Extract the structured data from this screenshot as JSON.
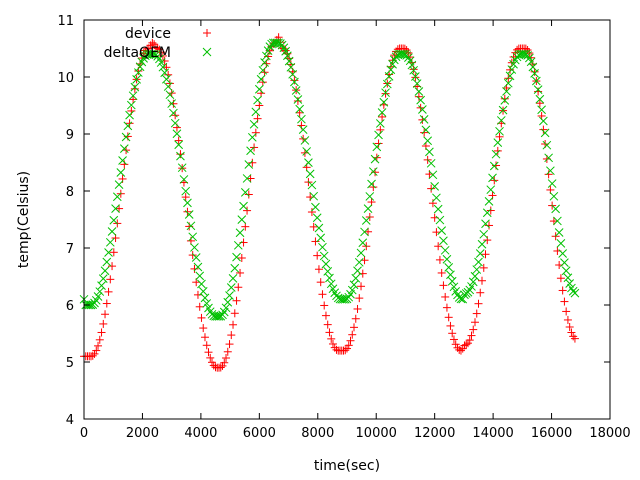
{
  "chart_data": {
    "type": "scatter",
    "title": "",
    "xlabel": "time(sec)",
    "ylabel": "temp(Celsius)",
    "xlim": [
      0,
      18000
    ],
    "ylim": [
      4,
      11
    ],
    "x_ticks": [
      0,
      2000,
      4000,
      6000,
      8000,
      10000,
      12000,
      14000,
      16000,
      18000
    ],
    "y_ticks": [
      4,
      5,
      6,
      7,
      8,
      9,
      10,
      11
    ],
    "grid": false,
    "legend_position": "top-left",
    "series": [
      {
        "name": "device",
        "marker": "plus",
        "color": "#ff0000",
        "keypoints": [
          [
            0,
            5.1
          ],
          [
            250,
            5.1
          ],
          [
            2200,
            10.5
          ],
          [
            2350,
            10.6
          ],
          [
            2500,
            10.5
          ],
          [
            4550,
            4.9
          ],
          [
            4650,
            4.9
          ],
          [
            6550,
            10.6
          ],
          [
            6650,
            10.7
          ],
          [
            6800,
            10.5
          ],
          [
            8700,
            5.2
          ],
          [
            8900,
            5.2
          ],
          [
            10800,
            10.5
          ],
          [
            10950,
            10.5
          ],
          [
            12900,
            5.2
          ],
          [
            13050,
            5.3
          ],
          [
            14900,
            10.5
          ],
          [
            15100,
            10.5
          ],
          [
            16850,
            5.4
          ]
        ]
      },
      {
        "name": "deltaQEM",
        "marker": "cross",
        "color": "#00c000",
        "keypoints": [
          [
            0,
            6.1
          ],
          [
            50,
            6.0
          ],
          [
            250,
            6.0
          ],
          [
            2200,
            10.4
          ],
          [
            2400,
            10.4
          ],
          [
            4500,
            5.8
          ],
          [
            4650,
            5.8
          ],
          [
            6500,
            10.6
          ],
          [
            6650,
            10.6
          ],
          [
            8800,
            6.1
          ],
          [
            8950,
            6.1
          ],
          [
            10800,
            10.4
          ],
          [
            10950,
            10.4
          ],
          [
            12950,
            6.1
          ],
          [
            13050,
            6.2
          ],
          [
            14950,
            10.4
          ],
          [
            15100,
            10.4
          ],
          [
            16850,
            6.2
          ]
        ]
      }
    ],
    "sample_step": 60
  }
}
